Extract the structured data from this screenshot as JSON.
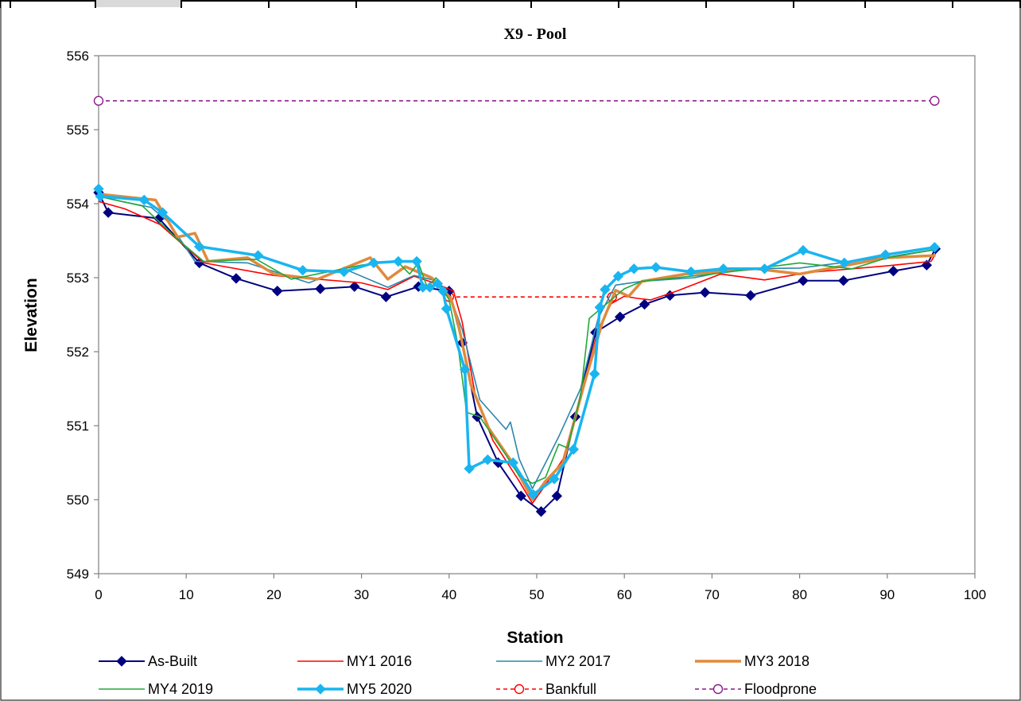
{
  "chart_data": {
    "type": "line",
    "title": "X9 - Pool",
    "xlabel": "Station",
    "ylabel": "Elevation",
    "xlim": [
      0,
      100
    ],
    "ylim": [
      549,
      556
    ],
    "x_ticks": [
      0,
      10,
      20,
      30,
      40,
      50,
      60,
      70,
      80,
      90,
      100
    ],
    "y_ticks": [
      549,
      550,
      551,
      552,
      553,
      554,
      555,
      556
    ],
    "grid": false,
    "legend_position": "bottom",
    "series": [
      {
        "name": "As-Built",
        "color": "#000080",
        "marker": "diamond",
        "line_style": "solid",
        "points": [
          [
            0,
            554.15
          ],
          [
            1.1,
            553.88
          ],
          [
            6.9,
            553.8
          ],
          [
            11.5,
            553.2
          ],
          [
            15.7,
            552.99
          ],
          [
            20.4,
            552.82
          ],
          [
            25.3,
            552.85
          ],
          [
            29.2,
            552.88
          ],
          [
            32.8,
            552.74
          ],
          [
            36.5,
            552.88
          ],
          [
            40.0,
            552.82
          ],
          [
            41.5,
            552.12
          ],
          [
            43.2,
            551.12
          ],
          [
            45.6,
            550.5
          ],
          [
            48.2,
            550.05
          ],
          [
            50.5,
            549.84
          ],
          [
            52.3,
            550.05
          ],
          [
            54.4,
            551.12
          ],
          [
            56.7,
            552.26
          ],
          [
            59.5,
            552.47
          ],
          [
            62.3,
            552.64
          ],
          [
            65.2,
            552.76
          ],
          [
            69.2,
            552.8
          ],
          [
            74.4,
            552.76
          ],
          [
            80.4,
            552.96
          ],
          [
            85.0,
            552.96
          ],
          [
            90.7,
            553.09
          ],
          [
            94.5,
            553.17
          ],
          [
            95.5,
            553.39
          ]
        ]
      },
      {
        "name": "MY1 2016",
        "color": "#FF0000",
        "marker": "none",
        "line_style": "solid",
        "points": [
          [
            0,
            554.03
          ],
          [
            3.0,
            553.93
          ],
          [
            7.0,
            553.72
          ],
          [
            12.0,
            553.2
          ],
          [
            20.0,
            553.03
          ],
          [
            30.0,
            552.93
          ],
          [
            33.0,
            552.84
          ],
          [
            36.0,
            553.02
          ],
          [
            38.5,
            552.92
          ],
          [
            40.5,
            552.82
          ],
          [
            41.5,
            552.4
          ],
          [
            43.0,
            551.4
          ],
          [
            45.0,
            550.8
          ],
          [
            48.0,
            550.25
          ],
          [
            49.5,
            549.95
          ],
          [
            51.0,
            550.2
          ],
          [
            53.0,
            550.55
          ],
          [
            55.5,
            551.6
          ],
          [
            57.0,
            552.3
          ],
          [
            58.5,
            552.65
          ],
          [
            60.0,
            552.75
          ],
          [
            61.5,
            552.72
          ],
          [
            63.0,
            552.7
          ],
          [
            66.0,
            552.82
          ],
          [
            71.0,
            553.05
          ],
          [
            76.0,
            552.97
          ],
          [
            81.0,
            553.07
          ],
          [
            90.0,
            553.16
          ],
          [
            95.0,
            553.22
          ],
          [
            95.5,
            553.32
          ]
        ]
      },
      {
        "name": "MY2 2017",
        "color": "#2E86AB",
        "marker": "none",
        "line_style": "solid",
        "points": [
          [
            0,
            554.1
          ],
          [
            3.0,
            554.02
          ],
          [
            6.0,
            553.95
          ],
          [
            8.0,
            553.75
          ],
          [
            11.0,
            553.22
          ],
          [
            17.0,
            553.2
          ],
          [
            24.0,
            552.93
          ],
          [
            28.0,
            553.12
          ],
          [
            33.0,
            552.87
          ],
          [
            36.0,
            553.03
          ],
          [
            38.5,
            552.96
          ],
          [
            40.2,
            552.72
          ],
          [
            41.5,
            552.3
          ],
          [
            43.5,
            551.35
          ],
          [
            46.5,
            550.95
          ],
          [
            47.0,
            551.05
          ],
          [
            48.0,
            550.55
          ],
          [
            49.5,
            550.15
          ],
          [
            50.5,
            550.38
          ],
          [
            52.5,
            550.85
          ],
          [
            55.0,
            551.5
          ],
          [
            57.0,
            552.45
          ],
          [
            59.0,
            552.9
          ],
          [
            62.0,
            552.95
          ],
          [
            68.0,
            553.0
          ],
          [
            73.0,
            553.12
          ],
          [
            80.0,
            553.13
          ],
          [
            90.0,
            553.28
          ],
          [
            95.5,
            553.38
          ]
        ]
      },
      {
        "name": "MY3 2018",
        "color": "#E08A3C",
        "marker": "none",
        "line_style": "solid",
        "points": [
          [
            0,
            554.13
          ],
          [
            6.5,
            554.05
          ],
          [
            9.0,
            553.55
          ],
          [
            11.0,
            553.6
          ],
          [
            12.5,
            553.22
          ],
          [
            17.0,
            553.27
          ],
          [
            20.0,
            553.05
          ],
          [
            25.0,
            552.98
          ],
          [
            31.0,
            553.27
          ],
          [
            33.0,
            552.98
          ],
          [
            35.0,
            553.15
          ],
          [
            38.0,
            553.0
          ],
          [
            40.2,
            552.72
          ],
          [
            41.0,
            552.4
          ],
          [
            42.5,
            551.55
          ],
          [
            44.5,
            550.97
          ],
          [
            47.5,
            550.45
          ],
          [
            49.5,
            550.0
          ],
          [
            51.0,
            550.25
          ],
          [
            53.0,
            550.5
          ],
          [
            55.5,
            551.6
          ],
          [
            57.5,
            552.4
          ],
          [
            59.0,
            552.83
          ],
          [
            60.5,
            552.75
          ],
          [
            62.0,
            552.95
          ],
          [
            67.0,
            553.05
          ],
          [
            75.0,
            553.12
          ],
          [
            80.0,
            553.05
          ],
          [
            90.0,
            553.27
          ],
          [
            95.5,
            553.3
          ]
        ]
      },
      {
        "name": "MY4 2019",
        "color": "#22A83A",
        "marker": "none",
        "line_style": "solid",
        "points": [
          [
            0,
            554.1
          ],
          [
            5.0,
            553.97
          ],
          [
            9.0,
            553.52
          ],
          [
            12.0,
            553.22
          ],
          [
            18.0,
            553.25
          ],
          [
            22.0,
            552.98
          ],
          [
            30.0,
            553.17
          ],
          [
            34.0,
            553.23
          ],
          [
            35.5,
            553.05
          ],
          [
            36.5,
            553.2
          ],
          [
            37.5,
            552.87
          ],
          [
            38.5,
            553.0
          ],
          [
            40.0,
            552.7
          ],
          [
            41.0,
            552.1
          ],
          [
            42.0,
            551.18
          ],
          [
            43.5,
            551.12
          ],
          [
            46.5,
            550.6
          ],
          [
            48.0,
            550.32
          ],
          [
            49.5,
            550.22
          ],
          [
            51.0,
            550.3
          ],
          [
            52.5,
            550.75
          ],
          [
            53.5,
            550.7
          ],
          [
            55.0,
            551.4
          ],
          [
            56.0,
            552.45
          ],
          [
            57.5,
            552.6
          ],
          [
            60.0,
            552.85
          ],
          [
            62.0,
            552.95
          ],
          [
            70.0,
            553.05
          ],
          [
            80.0,
            553.2
          ],
          [
            86.0,
            553.12
          ],
          [
            90.0,
            553.27
          ],
          [
            95.5,
            553.38
          ]
        ]
      },
      {
        "name": "MY5 2020",
        "color": "#19B5F0",
        "marker": "diamond",
        "line_style": "solid",
        "points": [
          [
            0,
            554.2
          ],
          [
            0.2,
            554.1
          ],
          [
            5.2,
            554.05
          ],
          [
            7.3,
            553.88
          ],
          [
            11.5,
            553.42
          ],
          [
            18.2,
            553.3
          ],
          [
            23.3,
            553.1
          ],
          [
            28.0,
            553.08
          ],
          [
            31.4,
            553.2
          ],
          [
            34.2,
            553.22
          ],
          [
            36.3,
            553.22
          ],
          [
            37.0,
            552.87
          ],
          [
            37.8,
            552.87
          ],
          [
            38.7,
            552.92
          ],
          [
            39.3,
            552.82
          ],
          [
            39.7,
            552.58
          ],
          [
            41.8,
            551.76
          ],
          [
            42.3,
            550.42
          ],
          [
            44.4,
            550.54
          ],
          [
            47.3,
            550.5
          ],
          [
            49.6,
            550.07
          ],
          [
            52.0,
            550.28
          ],
          [
            54.2,
            550.68
          ],
          [
            56.6,
            551.7
          ],
          [
            57.2,
            552.6
          ],
          [
            57.8,
            552.84
          ],
          [
            59.3,
            553.02
          ],
          [
            61.1,
            553.12
          ],
          [
            63.6,
            553.14
          ],
          [
            67.6,
            553.08
          ],
          [
            71.3,
            553.12
          ],
          [
            76.0,
            553.12
          ],
          [
            80.4,
            553.37
          ],
          [
            85.1,
            553.2
          ],
          [
            89.8,
            553.31
          ],
          [
            95.4,
            553.41
          ]
        ]
      },
      {
        "name": "Bankfull",
        "color": "#FF0000",
        "marker": "circle",
        "line_style": "dashed",
        "points": [
          [
            40.0,
            552.74
          ],
          [
            58.6,
            552.74
          ]
        ]
      },
      {
        "name": "Floodprone",
        "color": "#8B1A89",
        "marker": "circle",
        "line_style": "dashed",
        "points": [
          [
            0,
            555.39
          ],
          [
            95.4,
            555.39
          ]
        ]
      }
    ]
  }
}
